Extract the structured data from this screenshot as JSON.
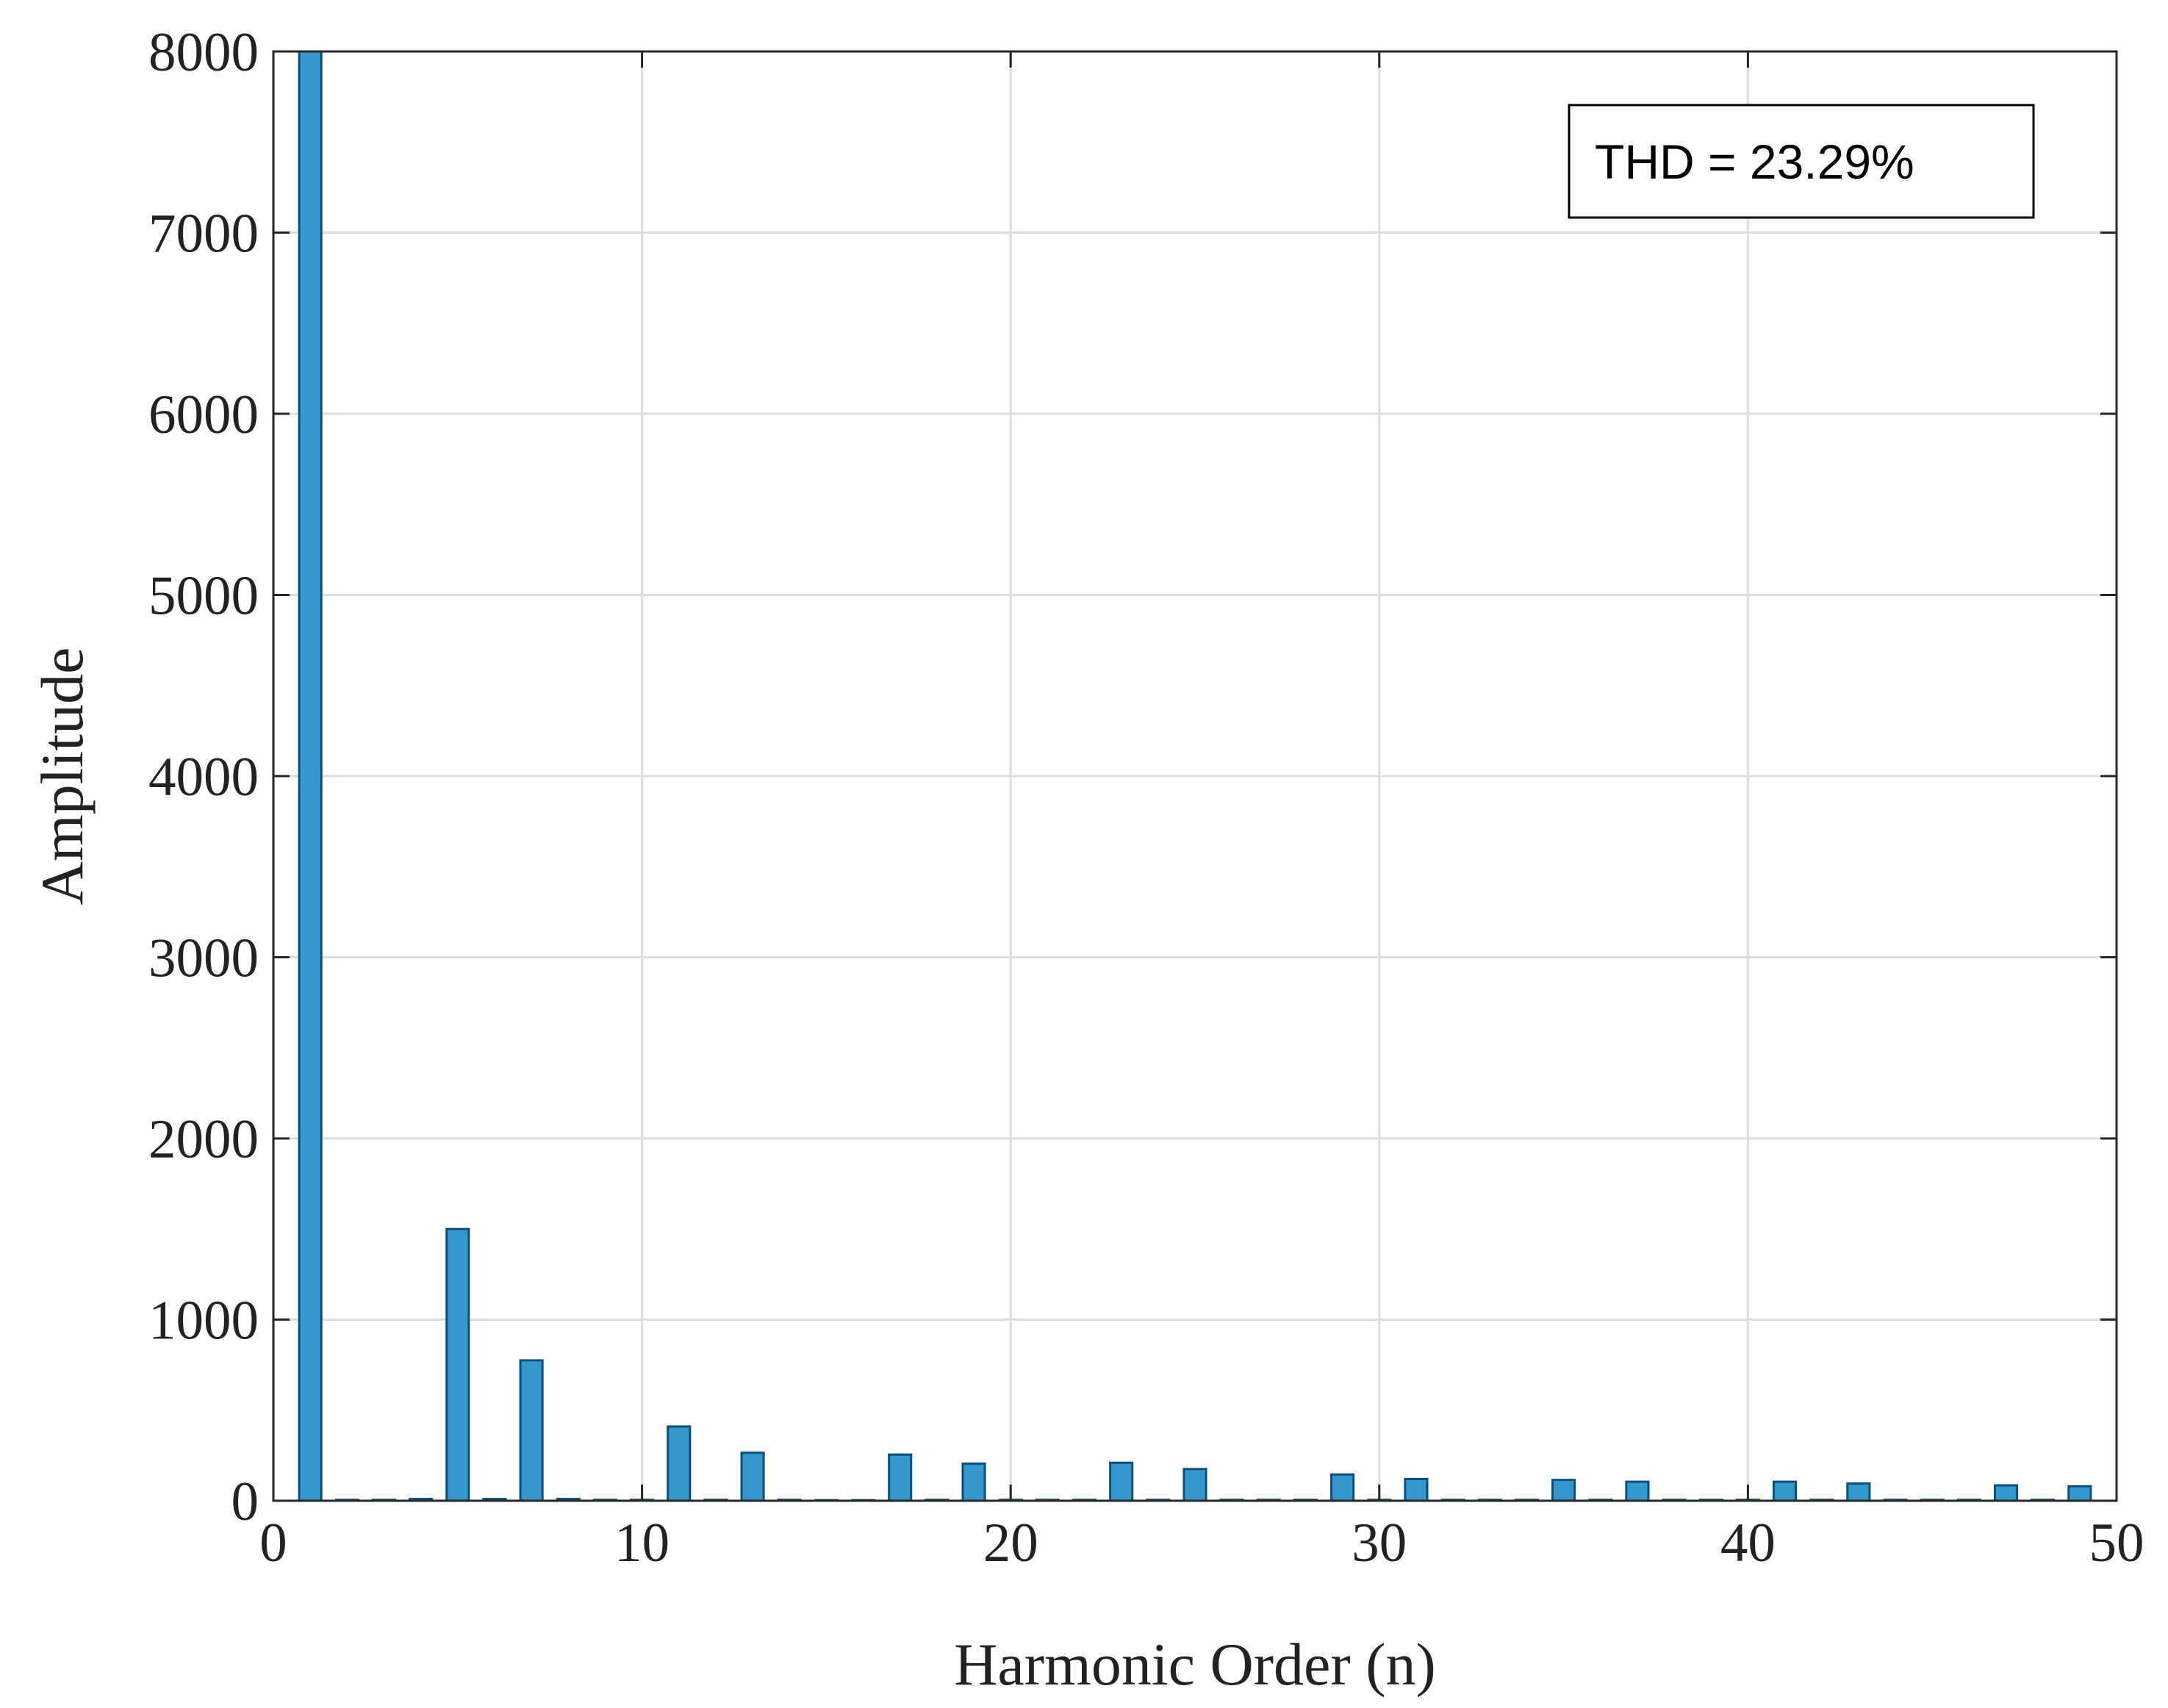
{
  "chart_data": {
    "type": "bar",
    "xlabel": "Harmonic Order (n)",
    "ylabel": "Amplitude",
    "xlim": [
      0,
      50
    ],
    "ylim": [
      0,
      8000
    ],
    "xticks": [
      0,
      10,
      20,
      30,
      40,
      50
    ],
    "yticks": [
      0,
      1000,
      2000,
      3000,
      4000,
      5000,
      6000,
      7000,
      8000
    ],
    "grid": true,
    "annotation": "THD = 23.29%",
    "annotation_position": "top-right",
    "bar_color": "#3399cc",
    "bar_edge_color": "#0a4f7f",
    "x": [
      1,
      2,
      3,
      4,
      5,
      6,
      7,
      8,
      9,
      10,
      11,
      12,
      13,
      14,
      15,
      16,
      17,
      18,
      19,
      20,
      21,
      22,
      23,
      24,
      25,
      26,
      27,
      28,
      29,
      30,
      31,
      32,
      33,
      34,
      35,
      36,
      37,
      38,
      39,
      40,
      41,
      42,
      43,
      44,
      45,
      46,
      47,
      48,
      49
    ],
    "values": [
      8000,
      5,
      5,
      10,
      1500,
      10,
      775,
      10,
      5,
      5,
      410,
      5,
      265,
      5,
      3,
      3,
      255,
      5,
      205,
      5,
      5,
      5,
      210,
      5,
      175,
      5,
      5,
      5,
      145,
      5,
      120,
      5,
      5,
      5,
      115,
      5,
      105,
      5,
      5,
      5,
      105,
      5,
      95,
      5,
      5,
      5,
      85,
      5,
      80
    ]
  }
}
